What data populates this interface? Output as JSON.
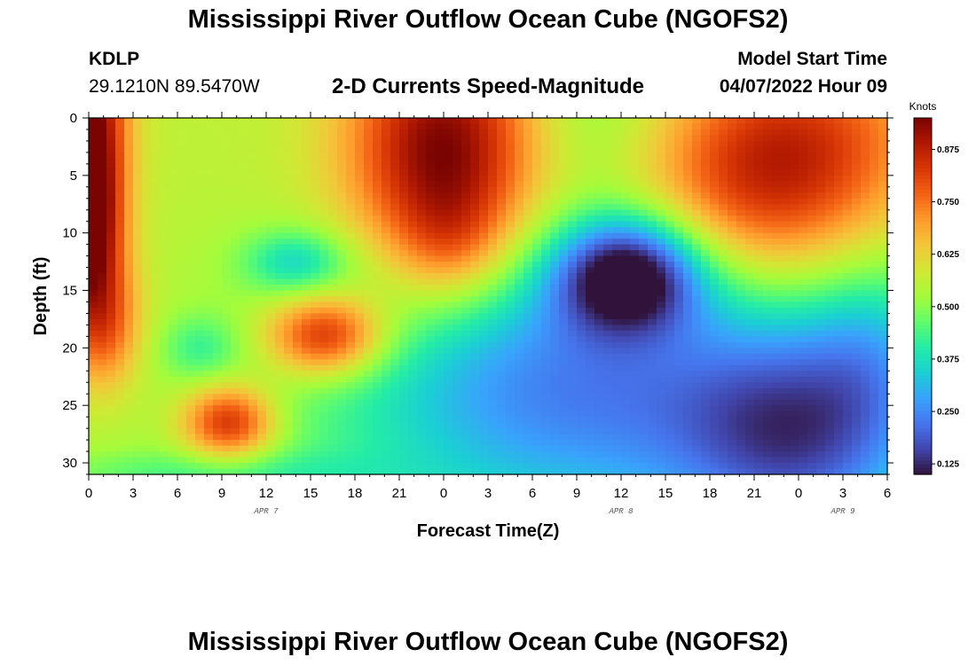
{
  "header": {
    "title": "Mississippi River Outflow Ocean Cube (NGOFS2)",
    "station_id": "KDLP",
    "station_coords": "29.1210N  89.5470W",
    "subtitle": "2-D Currents Speed-Magnitude",
    "model_start_label": "Model Start Time",
    "model_start_value": "04/07/2022 Hour 09"
  },
  "footer": {
    "title": "Mississippi River Outflow Ocean Cube (NGOFS2)"
  },
  "chart_data": {
    "type": "heatmap",
    "xlabel": "Forecast Time(Z)",
    "ylabel": "Depth (ft)",
    "x_range_hours": [
      0,
      54
    ],
    "y_range": [
      0,
      31
    ],
    "y_ticks": [
      0,
      5,
      10,
      15,
      20,
      25,
      30
    ],
    "x_tick_hours": [
      0,
      3,
      6,
      9,
      12,
      15,
      18,
      21,
      24,
      27,
      30,
      33,
      36,
      39,
      42,
      45,
      48,
      51,
      54
    ],
    "x_tick_labels": [
      "0",
      "3",
      "6",
      "9",
      "12",
      "15",
      "18",
      "21",
      "0",
      "3",
      "6",
      "9",
      "12",
      "15",
      "18",
      "21",
      "0",
      "3",
      "6"
    ],
    "date_labels": [
      {
        "text": "APR 7",
        "hour": 12
      },
      {
        "text": "APR 8",
        "hour": 36
      },
      {
        "text": "APR 9",
        "hour": 51
      }
    ],
    "colorbar": {
      "title": "Knots",
      "min": 0.1,
      "max": 0.95,
      "ticks": [
        0.125,
        0.25,
        0.375,
        0.5,
        0.625,
        0.75,
        0.875
      ],
      "tick_labels": [
        "0.125",
        "0.250",
        "0.375",
        "0.500",
        "0.625",
        "0.750",
        "0.875"
      ],
      "colormap": [
        "#30123b",
        "#4145ab",
        "#4675ed",
        "#39a2fc",
        "#1bcfd4",
        "#24eca6",
        "#61fc6c",
        "#a4fc3b",
        "#d1e834",
        "#f3c63a",
        "#fe9b2d",
        "#f36315",
        "#d93806",
        "#b11901",
        "#7a0402"
      ]
    },
    "background_value": 0.56,
    "features": [
      {
        "t": 0,
        "d": 0,
        "st": 1.8,
        "sd": 7,
        "amp": 0.4
      },
      {
        "t": 0,
        "d": 10,
        "st": 1.6,
        "sd": 5,
        "amp": 0.33
      },
      {
        "t": 1,
        "d": 18,
        "st": 1.8,
        "sd": 4,
        "amp": 0.22
      },
      {
        "t": 24,
        "d": 3,
        "st": 4.5,
        "sd": 7.5,
        "amp": 0.4
      },
      {
        "t": 24.5,
        "d": 11,
        "st": 2.5,
        "sd": 3.5,
        "amp": 0.1
      },
      {
        "t": 46,
        "d": 6,
        "st": 6,
        "sd": 6,
        "amp": 0.28
      },
      {
        "t": 49,
        "d": 0,
        "st": 6,
        "sd": 5,
        "amp": 0.12
      },
      {
        "t": 16,
        "d": 19,
        "st": 2.8,
        "sd": 2.5,
        "amp": 0.34
      },
      {
        "t": 9.5,
        "d": 26.5,
        "st": 2.2,
        "sd": 2.3,
        "amp": 0.32
      },
      {
        "t": 14,
        "d": 12.5,
        "st": 2.5,
        "sd": 2,
        "amp": -0.17
      },
      {
        "t": 7.5,
        "d": 20,
        "st": 1.8,
        "sd": 2,
        "amp": -0.1
      },
      {
        "t": 36.5,
        "d": 13.5,
        "st": 3.5,
        "sd": 3.5,
        "amp": -0.43
      },
      {
        "t": 36,
        "d": 25,
        "st": 15,
        "sd": 9,
        "amp": -0.28
      },
      {
        "t": 48,
        "d": 28,
        "st": 5.5,
        "sd": 7,
        "amp": -0.23
      },
      {
        "t": 30,
        "d": 20,
        "st": 7,
        "sd": 7,
        "amp": -0.07
      },
      {
        "t": 34,
        "d": 0,
        "st": 4,
        "sd": 5,
        "amp": -0.07
      },
      {
        "t": 53,
        "d": 20,
        "st": 3,
        "sd": 6,
        "amp": -0.1
      },
      {
        "t": 8,
        "d": 31,
        "st": 8,
        "sd": 1.5,
        "amp": -0.1
      }
    ]
  }
}
